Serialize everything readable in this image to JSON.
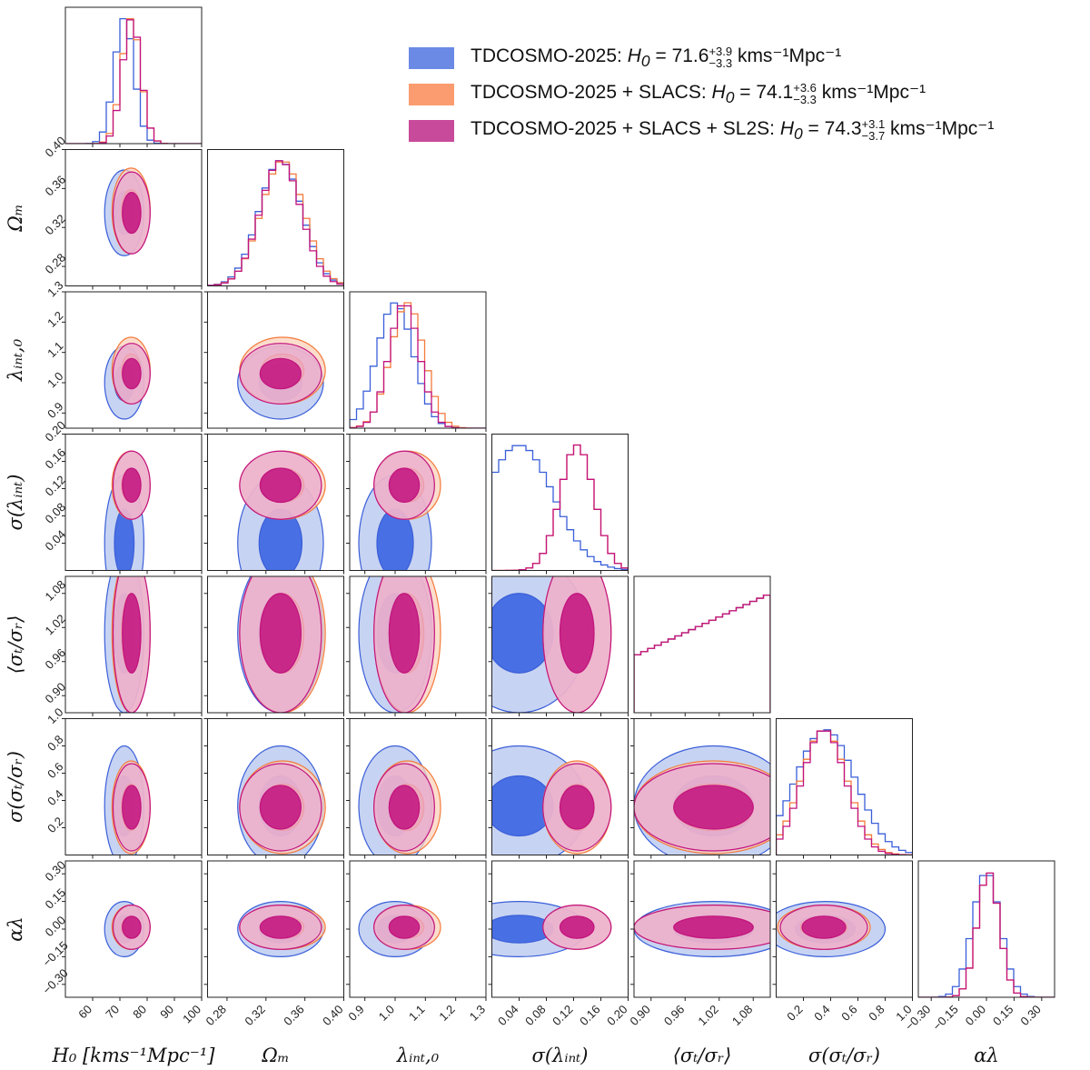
{
  "chart_data": {
    "type": "corner",
    "title": "",
    "parameters": [
      {
        "key": "H0",
        "label": "H₀ [kms⁻¹Mpc⁻¹]",
        "short": "H₀",
        "range": [
          50,
          100
        ],
        "ticks": [
          60,
          70,
          80,
          90,
          100
        ],
        "tick_labels": [
          "60",
          "70",
          "80",
          "90",
          "100"
        ]
      },
      {
        "key": "Om",
        "label": "Ωₘ",
        "short": "Ωₘ",
        "range": [
          0.26,
          0.4
        ],
        "ticks": [
          0.28,
          0.32,
          0.36,
          0.4
        ],
        "tick_labels": [
          "0.28",
          "0.32",
          "0.36",
          "0.40"
        ]
      },
      {
        "key": "lam",
        "label": "λᵢₙₜ,₀",
        "short": "λᵢₙₜ,₀",
        "range": [
          0.85,
          1.3
        ],
        "ticks": [
          0.9,
          1.0,
          1.1,
          1.2,
          1.3
        ],
        "tick_labels": [
          "0.9",
          "1.0",
          "1.1",
          "1.2",
          "1.3"
        ]
      },
      {
        "key": "slam",
        "label": "σ(λᵢₙₜ)",
        "short": "σ(λᵢₙₜ)",
        "range": [
          0.0,
          0.2
        ],
        "ticks": [
          0.04,
          0.08,
          0.12,
          0.16,
          0.2
        ],
        "tick_labels": [
          "0.04",
          "0.08",
          "0.12",
          "0.16",
          "0.20"
        ]
      },
      {
        "key": "ani",
        "label": "⟨σₜ/σᵣ⟩",
        "short": "⟨σₜ/σᵣ⟩",
        "range": [
          0.87,
          1.11
        ],
        "ticks": [
          0.9,
          0.96,
          1.02,
          1.08
        ],
        "tick_labels": [
          "0.90",
          "0.96",
          "1.02",
          "1.08"
        ]
      },
      {
        "key": "sani",
        "label": "σ(σₜ/σᵣ)",
        "short": "σ(σₜ/σᵣ)",
        "range": [
          0.0,
          1.0
        ],
        "ticks": [
          0.2,
          0.4,
          0.6,
          0.8,
          1.0
        ],
        "tick_labels": [
          "0.2",
          "0.4",
          "0.6",
          "0.8",
          "1.0"
        ]
      },
      {
        "key": "alpha",
        "label": "αλ",
        "short": "αλ",
        "range": [
          -0.37,
          0.37
        ],
        "ticks": [
          -0.3,
          -0.15,
          0.0,
          0.15,
          0.3
        ],
        "tick_labels": [
          "−0.30",
          "−0.15",
          "0.00",
          "0.15",
          "0.30"
        ]
      }
    ],
    "series": [
      {
        "name": "TDCOSMO-2025",
        "legend": "TDCOSMO-2025: H₀ = 71.6 (+3.9 / −3.3) kms⁻¹Mpc⁻¹",
        "color": "#3a5fd9",
        "fill_inner": "#4169e1",
        "fill_outer": "#b4c4ee",
        "mean": {
          "H0": 71.6,
          "Om": 0.335,
          "lam": 1.0,
          "slam": 0.04,
          "ani": 1.01,
          "sani": 0.36,
          "alpha": 0.0
        },
        "sigma": {
          "H0": 3.6,
          "Om": 0.022,
          "lam": 0.06,
          "slam": 0.05,
          "ani": 0.07,
          "sani": 0.22,
          "alpha": 0.075
        }
      },
      {
        "name": "TDCOSMO-2025 + SLACS",
        "legend": "TDCOSMO-2025 + SLACS: H₀ = 74.1 (+3.6 / −3.3) kms⁻¹Mpc⁻¹",
        "color": "#f47a3c",
        "fill_inner": "#f9a57a",
        "fill_outer": "#fbd2bb",
        "mean": {
          "H0": 74.1,
          "Om": 0.337,
          "lam": 1.04,
          "slam": 0.125,
          "ani": 1.01,
          "sani": 0.35,
          "alpha": 0.01
        },
        "sigma": {
          "H0": 3.5,
          "Om": 0.022,
          "lam": 0.055,
          "slam": 0.025,
          "ani": 0.07,
          "sani": 0.17,
          "alpha": 0.06
        }
      },
      {
        "name": "TDCOSMO-2025 + SLACS + SL2S",
        "legend": "TDCOSMO-2025 + SLACS + SL2S: H₀ = 74.3 (+3.1 / −3.7) kms⁻¹Mpc⁻¹",
        "color": "#c2137f",
        "fill_inner": "#c2137f",
        "fill_outer": "#e9a9cf",
        "mean": {
          "H0": 74.3,
          "Om": 0.335,
          "lam": 1.03,
          "slam": 0.125,
          "ani": 1.01,
          "sani": 0.35,
          "alpha": 0.01
        },
        "sigma": {
          "H0": 3.4,
          "Om": 0.021,
          "lam": 0.05,
          "slam": 0.025,
          "ani": 0.07,
          "sani": 0.16,
          "alpha": 0.06
        }
      }
    ],
    "grid": false,
    "legend_position": "top-right"
  },
  "legend": {
    "items": [
      {
        "prefix": "TDCOSMO-2025: ",
        "value": "71.6",
        "sup": "+3.9",
        "sub": "−3.3",
        "unit": " kms⁻¹Mpc⁻¹"
      },
      {
        "prefix": "TDCOSMO-2025 + SLACS: ",
        "value": "74.1",
        "sup": "+3.6",
        "sub": "−3.3",
        "unit": " kms⁻¹Mpc⁻¹"
      },
      {
        "prefix": "TDCOSMO-2025 + SLACS + SL2S: ",
        "value": "74.3",
        "sup": "+3.1",
        "sub": "−3.7",
        "unit": " kms⁻¹Mpc⁻¹"
      }
    ],
    "h0_symbol": "H",
    "h0_sub": "0",
    "equals": " = "
  }
}
